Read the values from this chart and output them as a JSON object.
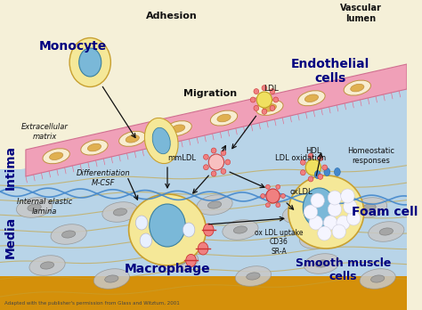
{
  "fig_width": 4.74,
  "fig_height": 3.48,
  "dpi": 100,
  "bg_lumen_color": "#f5f0d8",
  "bg_intima_color": "#b8d4e8",
  "bg_media_color": "#d4900a",
  "endothelial_band_color": "#f0a0b8",
  "endothelial_band_edge": "#d07090",
  "cell_body_color": "#f5e898",
  "cell_body_edge": "#c8a030",
  "nucleus_color": "#7ab8d8",
  "nucleus_edge": "#3a80a0",
  "ldl_fill": "#f0e060",
  "ldl_edge": "#c0a020",
  "pink_fill": "#f08080",
  "pink_edge": "#cc3333",
  "arrow_color": "#111111",
  "elastic_color": "#4488cc",
  "fiber_color": "#b07818",
  "sm_fill": "#c8c8c8",
  "sm_edge": "#909090",
  "labels": {
    "adhesion": "Adhesion",
    "vascular_lumen": "Vascular\nlumen",
    "monocyte": "Monocyte",
    "migration": "Migration",
    "endothelial_cells": "Endothelial\ncells",
    "extracellular_matrix": "Extracellular\nmatrix",
    "ldl": "LDL",
    "intima": "Intima",
    "differentiation": "Differentiation\nM-CSF",
    "mmldl": "mmLDL",
    "ldl_oxidation": "LDL oxidation",
    "hdl": "HDL",
    "homeostatic": "Homeostatic\nresponses",
    "oxldl": "oxLDL",
    "internal_elastic": "Internal elastic\nlamina",
    "macrophage": "Macrophage",
    "ox_ldl_uptake": "ox LDL uptake\nCD36\nSR-A",
    "foam_cell": "Foam cell",
    "media": "Media",
    "smooth_muscle": "Smooth muscle\ncells",
    "caption": "Adapted with the publisher's permission from Glass and Witztum, 2001"
  }
}
